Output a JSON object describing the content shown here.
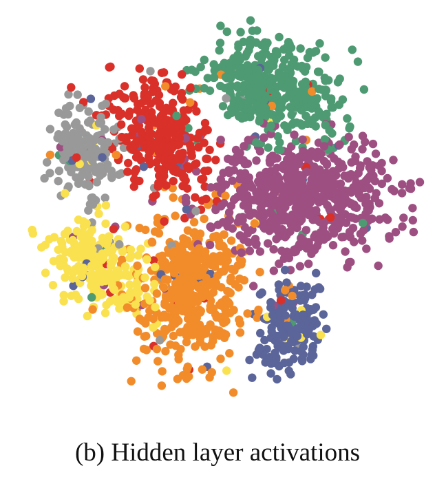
{
  "caption": "(b) Hidden layer activations",
  "chart_data": {
    "type": "scatter",
    "title": "",
    "xlabel": "",
    "ylabel": "",
    "axes_visible": false,
    "grid": false,
    "legend": "none",
    "x_range": [
      0,
      1
    ],
    "y_range": [
      0,
      1
    ],
    "series": [
      {
        "color": "#4e9a72",
        "count": 380,
        "cx": 0.64,
        "cy": 0.8,
        "sx": 0.085,
        "sy": 0.065,
        "rot": -0.35
      },
      {
        "color": "#d9302a",
        "count": 300,
        "cx": 0.36,
        "cy": 0.68,
        "sx": 0.055,
        "sy": 0.085,
        "rot": 0.5
      },
      {
        "color": "#999999",
        "count": 190,
        "cx": 0.16,
        "cy": 0.64,
        "sx": 0.045,
        "sy": 0.06,
        "rot": 0.3
      },
      {
        "color": "#9e4f82",
        "count": 650,
        "cx": 0.72,
        "cy": 0.52,
        "sx": 0.115,
        "sy": 0.075,
        "rot": 0.05
      },
      {
        "color": "#fae150",
        "count": 230,
        "cx": 0.2,
        "cy": 0.33,
        "sx": 0.05,
        "sy": 0.08,
        "rot": 0.85
      },
      {
        "color": "#f28c2a",
        "count": 420,
        "cx": 0.43,
        "cy": 0.27,
        "sx": 0.07,
        "sy": 0.1,
        "rot": -0.15
      },
      {
        "color": "#5b6599",
        "count": 180,
        "cx": 0.69,
        "cy": 0.17,
        "sx": 0.04,
        "sy": 0.06,
        "rot": -0.25
      }
    ]
  }
}
